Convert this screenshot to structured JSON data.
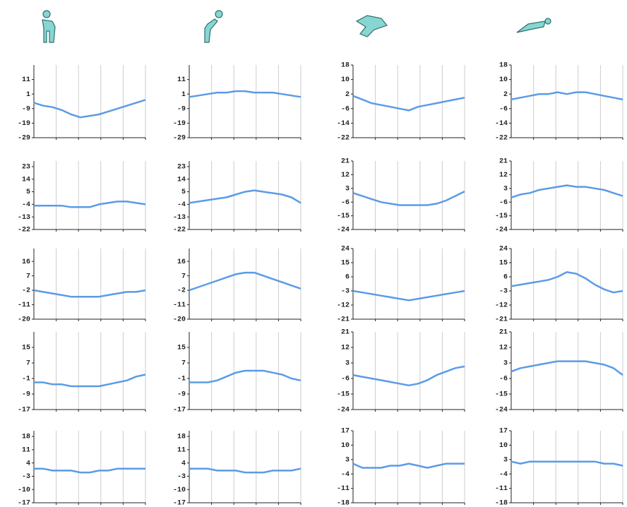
{
  "chart_data": [
    {
      "type": "line",
      "color": "#5b9be6",
      "ylim": [
        -29,
        21
      ],
      "yticks": [
        11,
        1,
        -9,
        -19,
        -29
      ],
      "values": [
        -5,
        -7,
        -8,
        -10,
        -13,
        -15,
        -14,
        -13,
        -11,
        -9,
        -7,
        -5,
        -3
      ]
    },
    {
      "type": "line",
      "color": "#5b9be6",
      "ylim": [
        -29,
        21
      ],
      "yticks": [
        11,
        1,
        -9,
        -19,
        -29
      ],
      "values": [
        -1,
        0,
        1,
        2,
        2,
        3,
        3,
        2,
        2,
        2,
        1,
        0,
        -1
      ]
    },
    {
      "type": "line",
      "color": "#5b9be6",
      "ylim": [
        -22,
        18
      ],
      "yticks": [
        18,
        10,
        2,
        -6,
        -14,
        -22
      ],
      "values": [
        1,
        -1,
        -3,
        -4,
        -5,
        -6,
        -7,
        -5,
        -4,
        -3,
        -2,
        -1,
        0
      ]
    },
    {
      "type": "line",
      "color": "#5b9be6",
      "ylim": [
        -22,
        18
      ],
      "yticks": [
        18,
        10,
        2,
        -6,
        -14,
        -22
      ],
      "values": [
        -1,
        0,
        1,
        2,
        2,
        3,
        2,
        3,
        3,
        2,
        1,
        0,
        -1
      ]
    },
    {
      "type": "line",
      "color": "#5b9be6",
      "ylim": [
        -22,
        27
      ],
      "yticks": [
        23,
        14,
        5,
        -4,
        -13,
        -22
      ],
      "values": [
        -5,
        -5,
        -5,
        -5,
        -6,
        -6,
        -6,
        -4,
        -3,
        -2,
        -2,
        -3,
        -4
      ]
    },
    {
      "type": "line",
      "color": "#5b9be6",
      "ylim": [
        -22,
        27
      ],
      "yticks": [
        23,
        14,
        5,
        -4,
        -13,
        -22
      ],
      "values": [
        -3,
        -2,
        -1,
        0,
        1,
        3,
        5,
        6,
        5,
        4,
        3,
        1,
        -3
      ]
    },
    {
      "type": "line",
      "color": "#5b9be6",
      "ylim": [
        -24,
        21
      ],
      "yticks": [
        21,
        12,
        3,
        -6,
        -15,
        -24
      ],
      "values": [
        0,
        -2,
        -4,
        -6,
        -7,
        -8,
        -8,
        -8,
        -8,
        -7,
        -5,
        -2,
        1
      ]
    },
    {
      "type": "line",
      "color": "#5b9be6",
      "ylim": [
        -24,
        21
      ],
      "yticks": [
        21,
        12,
        3,
        -6,
        -15,
        -24
      ],
      "values": [
        -3,
        -1,
        0,
        2,
        3,
        4,
        5,
        4,
        4,
        3,
        2,
        0,
        -2
      ]
    },
    {
      "type": "line",
      "color": "#5b9be6",
      "ylim": [
        -20,
        24
      ],
      "yticks": [
        16,
        7,
        -2,
        -11,
        -20
      ],
      "values": [
        -2,
        -3,
        -4,
        -5,
        -6,
        -6,
        -6,
        -6,
        -5,
        -4,
        -3,
        -3,
        -2
      ]
    },
    {
      "type": "line",
      "color": "#5b9be6",
      "ylim": [
        -20,
        24
      ],
      "yticks": [
        16,
        7,
        -2,
        -11,
        -20
      ],
      "values": [
        -2,
        0,
        2,
        4,
        6,
        8,
        9,
        9,
        7,
        5,
        3,
        1,
        -1
      ]
    },
    {
      "type": "line",
      "color": "#5b9be6",
      "ylim": [
        -21,
        24
      ],
      "yticks": [
        24,
        15,
        6,
        -3,
        -12,
        -21
      ],
      "values": [
        -3,
        -4,
        -5,
        -6,
        -7,
        -8,
        -9,
        -8,
        -7,
        -6,
        -5,
        -4,
        -3
      ]
    },
    {
      "type": "line",
      "color": "#5b9be6",
      "ylim": [
        -21,
        24
      ],
      "yticks": [
        24,
        15,
        6,
        -3,
        -12,
        -21
      ],
      "values": [
        0,
        1,
        2,
        3,
        4,
        6,
        9,
        8,
        5,
        1,
        -2,
        -4,
        -3
      ]
    },
    {
      "type": "line",
      "color": "#5b9be6",
      "ylim": [
        -17,
        23
      ],
      "yticks": [
        15,
        7,
        -1,
        -9,
        -17
      ],
      "values": [
        -3,
        -3,
        -4,
        -4,
        -5,
        -5,
        -5,
        -5,
        -4,
        -3,
        -2,
        0,
        1
      ]
    },
    {
      "type": "line",
      "color": "#5b9be6",
      "ylim": [
        -17,
        23
      ],
      "yticks": [
        15,
        7,
        -1,
        -9,
        -17
      ],
      "values": [
        -3,
        -3,
        -3,
        -2,
        0,
        2,
        3,
        3,
        3,
        2,
        1,
        -1,
        -2
      ]
    },
    {
      "type": "line",
      "color": "#5b9be6",
      "ylim": [
        -24,
        21
      ],
      "yticks": [
        21,
        12,
        3,
        -6,
        -15,
        -24
      ],
      "values": [
        -4,
        -5,
        -6,
        -7,
        -8,
        -9,
        -10,
        -9,
        -7,
        -4,
        -2,
        0,
        1
      ]
    },
    {
      "type": "line",
      "color": "#5b9be6",
      "ylim": [
        -24,
        21
      ],
      "yticks": [
        21,
        12,
        3,
        -6,
        -15,
        -24
      ],
      "values": [
        -2,
        0,
        1,
        2,
        3,
        4,
        4,
        4,
        4,
        3,
        2,
        0,
        -4
      ]
    },
    {
      "type": "line",
      "color": "#5b9be6",
      "ylim": [
        -17,
        21
      ],
      "yticks": [
        18,
        11,
        4,
        -3,
        -10,
        -17
      ],
      "values": [
        1,
        1,
        0,
        0,
        0,
        -1,
        -1,
        0,
        0,
        1,
        1,
        1,
        1
      ]
    },
    {
      "type": "line",
      "color": "#5b9be6",
      "ylim": [
        -17,
        21
      ],
      "yticks": [
        18,
        11,
        4,
        -3,
        -10,
        -17
      ],
      "values": [
        1,
        1,
        1,
        0,
        0,
        0,
        -1,
        -1,
        -1,
        0,
        0,
        0,
        1
      ]
    },
    {
      "type": "line",
      "color": "#5b9be6",
      "ylim": [
        -18,
        17
      ],
      "yticks": [
        17,
        10,
        3,
        -4,
        -11,
        -18
      ],
      "values": [
        1,
        -1,
        -1,
        -1,
        0,
        0,
        1,
        0,
        -1,
        0,
        1,
        1,
        1
      ]
    },
    {
      "type": "line",
      "color": "#5b9be6",
      "ylim": [
        -18,
        17
      ],
      "yticks": [
        17,
        10,
        3,
        -4,
        -11,
        -18
      ],
      "values": [
        2,
        1,
        2,
        2,
        2,
        2,
        2,
        2,
        2,
        2,
        1,
        1,
        0
      ]
    }
  ]
}
